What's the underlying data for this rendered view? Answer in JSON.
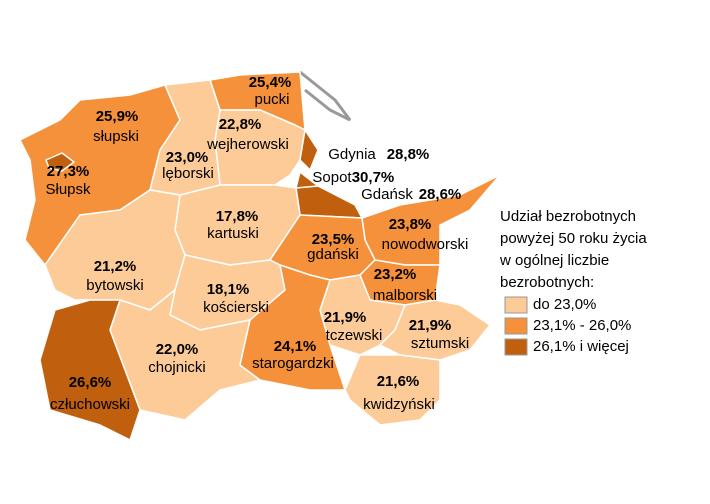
{
  "regions": [
    {
      "name": "pucki",
      "value": "25,4%",
      "class": 1
    },
    {
      "name": "słupski",
      "value": "25,9%",
      "class": 1
    },
    {
      "name": "wejherowski",
      "value": "22,8%",
      "class": 0
    },
    {
      "name": "lęborski",
      "value": "23,0%",
      "class": 0
    },
    {
      "name": "Słupsk",
      "value": "27,3%",
      "class": 2
    },
    {
      "name": "Gdynia",
      "value": "28,8%",
      "class": 2
    },
    {
      "name": "Sopot",
      "value": "30,7%",
      "class": 2
    },
    {
      "name": "Gdańsk",
      "value": "28,6%",
      "class": 2
    },
    {
      "name": "kartuski",
      "value": "17,8%",
      "class": 0
    },
    {
      "name": "nowodworski",
      "value": "23,8%",
      "class": 1
    },
    {
      "name": "gdański",
      "value": "23,5%",
      "class": 1
    },
    {
      "name": "bytowski",
      "value": "21,2%",
      "class": 0
    },
    {
      "name": "kościerski",
      "value": "18,1%",
      "class": 0
    },
    {
      "name": "malborski",
      "value": "23,2%",
      "class": 1
    },
    {
      "name": "tczewski",
      "value": "21,9%",
      "class": 0
    },
    {
      "name": "sztumski",
      "value": "21,9%",
      "class": 0
    },
    {
      "name": "chojnicki",
      "value": "22,0%",
      "class": 0
    },
    {
      "name": "starogardzki",
      "value": "24,1%",
      "class": 1
    },
    {
      "name": "człuchowski",
      "value": "26,6%",
      "class": 2
    },
    {
      "name": "kwidzyński",
      "value": "21,6%",
      "class": 0
    }
  ],
  "legend": {
    "title": [
      "Udział bezrobotnych",
      "powyżej 50 roku życia",
      "w ogólnej liczbie",
      "bezrobotnych:"
    ],
    "items": [
      {
        "label": "do 23,0%",
        "color": "#fdcb98"
      },
      {
        "label": "23,1% - 26,0%",
        "color": "#f5913a"
      },
      {
        "label": "26,1% i więcej",
        "color": "#c0600f"
      }
    ]
  }
}
